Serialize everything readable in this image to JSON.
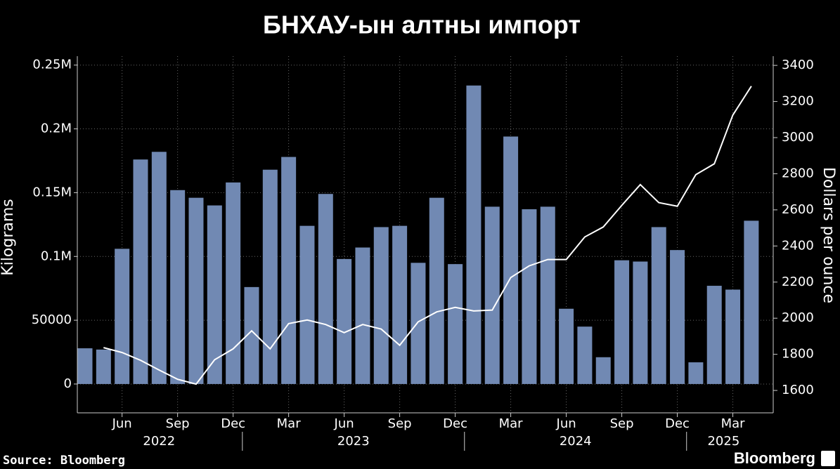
{
  "chart_data": {
    "type": "bar_line",
    "title": "БНХАУ-ын алтны импорт",
    "source": "Source: Bloomberg",
    "brand": "Bloomberg",
    "categories": [
      "2022-04",
      "2022-05",
      "2022-06",
      "2022-07",
      "2022-08",
      "2022-09",
      "2022-10",
      "2022-11",
      "2022-12",
      "2023-01",
      "2023-02",
      "2023-03",
      "2023-04",
      "2023-05",
      "2023-06",
      "2023-07",
      "2023-08",
      "2023-09",
      "2023-10",
      "2023-11",
      "2023-12",
      "2024-01",
      "2024-02",
      "2024-03",
      "2024-04",
      "2024-05",
      "2024-06",
      "2024-07",
      "2024-08",
      "2024-09",
      "2024-10",
      "2024-11",
      "2024-12",
      "2025-01",
      "2025-02",
      "2025-03",
      "2025-04"
    ],
    "series": [
      {
        "type": "bar",
        "color": "#7189b3",
        "values": [
          28000,
          27000,
          106000,
          176000,
          182000,
          152000,
          146000,
          140000,
          158000,
          76000,
          168000,
          178000,
          124000,
          149000,
          98000,
          107000,
          123000,
          124000,
          95000,
          146000,
          94000,
          234000,
          139000,
          194000,
          137000,
          139000,
          59000,
          45000,
          21000,
          97000,
          96000,
          123000,
          105000,
          17000,
          77000,
          74000,
          128000
        ]
      },
      {
        "type": "line",
        "axis": "y2",
        "color": "#ffffff",
        "values": [
          null,
          1837,
          1810,
          1767,
          1713,
          1662,
          1635,
          1770,
          1830,
          1930,
          1830,
          1970,
          1990,
          1965,
          1920,
          1965,
          1940,
          1850,
          1980,
          2035,
          2060,
          2040,
          2045,
          2225,
          2290,
          2325,
          2325,
          2450,
          2505,
          2625,
          2740,
          2640,
          2620,
          2795,
          2855,
          3125,
          3285
        ]
      }
    ],
    "ylabel": "Kilograms",
    "y2label": "Dollars per ounce",
    "ylim": [
      -22600,
      257000
    ],
    "yticks": [
      0,
      50000,
      {
        "value": 100000,
        "label": "0.1M"
      },
      {
        "value": 150000,
        "label": "0.15M"
      },
      {
        "value": 200000,
        "label": "0.2M"
      },
      {
        "value": 250000,
        "label": "0.25M"
      }
    ],
    "y2lim": [
      1476,
      3451
    ],
    "y2ticks": [
      1600,
      1800,
      2000,
      2200,
      2400,
      2600,
      2800,
      3000,
      3200,
      3400
    ],
    "xticks": [
      {
        "value": "2022-06",
        "label": "Jun"
      },
      {
        "value": "2022-09",
        "label": "Sep"
      },
      {
        "value": "2022-12",
        "label": "Dec"
      },
      {
        "value": "2023-03",
        "label": "Mar"
      },
      {
        "value": "2023-06",
        "label": "Jun"
      },
      {
        "value": "2023-09",
        "label": "Sep"
      },
      {
        "value": "2023-12",
        "label": "Dec"
      },
      {
        "value": "2024-03",
        "label": "Mar"
      },
      {
        "value": "2024-06",
        "label": "Jun"
      },
      {
        "value": "2024-09",
        "label": "Sep"
      },
      {
        "value": "2024-12",
        "label": "Dec"
      },
      {
        "value": "2025-03",
        "label": "Mar"
      }
    ],
    "years": [
      "2022",
      "2023",
      "2024",
      "2025"
    ],
    "grid": true
  }
}
